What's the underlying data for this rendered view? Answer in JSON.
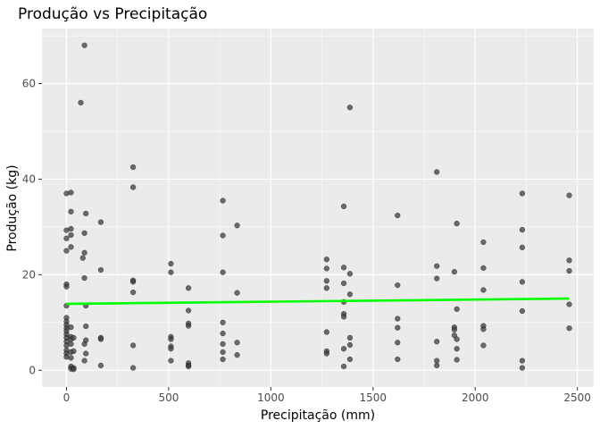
{
  "chart_data": {
    "type": "scatter",
    "title": "Produção vs Precipitação",
    "xlabel": "Precipitação (mm)",
    "ylabel": "Produção (kg)",
    "xlim": [
      -120,
      2580
    ],
    "ylim": [
      -3.5,
      71.5
    ],
    "x_ticks": [
      0,
      500,
      1000,
      1500,
      2000,
      2500
    ],
    "y_ticks": [
      0,
      20,
      40,
      60
    ],
    "grid": true,
    "legend": "none",
    "colors": {
      "panel": "#ebebeb",
      "gridline": "#ffffff",
      "point": "#3d3d3d",
      "trend": "#00ff00"
    },
    "trend_line": {
      "x": [
        0,
        2460
      ],
      "y": [
        13.9,
        15.0
      ]
    },
    "points": [
      {
        "x": 0,
        "y": 37
      },
      {
        "x": 22,
        "y": 37.2
      },
      {
        "x": 22,
        "y": 33.2
      },
      {
        "x": 0,
        "y": 29.3
      },
      {
        "x": 22,
        "y": 29.6
      },
      {
        "x": 22,
        "y": 28.3
      },
      {
        "x": 0,
        "y": 27.6
      },
      {
        "x": 0,
        "y": 25
      },
      {
        "x": 22,
        "y": 25.8
      },
      {
        "x": 0,
        "y": 18
      },
      {
        "x": 0,
        "y": 17.5
      },
      {
        "x": 0,
        "y": 13.5
      },
      {
        "x": 0,
        "y": 11
      },
      {
        "x": 0,
        "y": 10.2
      },
      {
        "x": 0,
        "y": 9.5
      },
      {
        "x": 0,
        "y": 8.8
      },
      {
        "x": 0,
        "y": 8.2
      },
      {
        "x": 0,
        "y": 7.5
      },
      {
        "x": 0,
        "y": 6.8
      },
      {
        "x": 0,
        "y": 6
      },
      {
        "x": 0,
        "y": 5.2
      },
      {
        "x": 0,
        "y": 4.2
      },
      {
        "x": 0,
        "y": 3.5
      },
      {
        "x": 0,
        "y": 2.8
      },
      {
        "x": 22,
        "y": 9
      },
      {
        "x": 22,
        "y": 7
      },
      {
        "x": 22,
        "y": 6.5
      },
      {
        "x": 22,
        "y": 5.5
      },
      {
        "x": 22,
        "y": 3.8
      },
      {
        "x": 22,
        "y": 2.6
      },
      {
        "x": 22,
        "y": 0.8
      },
      {
        "x": 22,
        "y": 0.3
      },
      {
        "x": 35,
        "y": 6.8
      },
      {
        "x": 35,
        "y": 4
      },
      {
        "x": 35,
        "y": 0.5
      },
      {
        "x": 35,
        "y": 0.2
      },
      {
        "x": 70,
        "y": 56
      },
      {
        "x": 80,
        "y": 23.5
      },
      {
        "x": 88,
        "y": 68
      },
      {
        "x": 88,
        "y": 28.7
      },
      {
        "x": 88,
        "y": 24.6
      },
      {
        "x": 88,
        "y": 19.3
      },
      {
        "x": 88,
        "y": 5.5
      },
      {
        "x": 88,
        "y": 2
      },
      {
        "x": 95,
        "y": 32.8
      },
      {
        "x": 95,
        "y": 13.5
      },
      {
        "x": 95,
        "y": 9.2
      },
      {
        "x": 95,
        "y": 6.3
      },
      {
        "x": 95,
        "y": 3.5
      },
      {
        "x": 168,
        "y": 31
      },
      {
        "x": 168,
        "y": 21
      },
      {
        "x": 168,
        "y": 6.8
      },
      {
        "x": 168,
        "y": 6.5
      },
      {
        "x": 168,
        "y": 1
      },
      {
        "x": 326,
        "y": 42.5
      },
      {
        "x": 326,
        "y": 38.3
      },
      {
        "x": 326,
        "y": 18.8
      },
      {
        "x": 326,
        "y": 18.5
      },
      {
        "x": 326,
        "y": 16.3
      },
      {
        "x": 326,
        "y": 5.2
      },
      {
        "x": 326,
        "y": 0.5
      },
      {
        "x": 511,
        "y": 22.3
      },
      {
        "x": 511,
        "y": 20.5
      },
      {
        "x": 511,
        "y": 7
      },
      {
        "x": 511,
        "y": 6.5
      },
      {
        "x": 511,
        "y": 5
      },
      {
        "x": 511,
        "y": 4.5
      },
      {
        "x": 511,
        "y": 2
      },
      {
        "x": 597,
        "y": 17.2
      },
      {
        "x": 597,
        "y": 12.5
      },
      {
        "x": 597,
        "y": 9.8
      },
      {
        "x": 597,
        "y": 9.3
      },
      {
        "x": 597,
        "y": 1.5
      },
      {
        "x": 597,
        "y": 1
      },
      {
        "x": 597,
        "y": 0.8
      },
      {
        "x": 765,
        "y": 35.5
      },
      {
        "x": 765,
        "y": 28.2
      },
      {
        "x": 765,
        "y": 20.5
      },
      {
        "x": 765,
        "y": 10
      },
      {
        "x": 765,
        "y": 7.7
      },
      {
        "x": 765,
        "y": 5.5
      },
      {
        "x": 765,
        "y": 3.8
      },
      {
        "x": 765,
        "y": 2.3
      },
      {
        "x": 835,
        "y": 30.3
      },
      {
        "x": 835,
        "y": 16.2
      },
      {
        "x": 835,
        "y": 5.8
      },
      {
        "x": 835,
        "y": 3.2
      },
      {
        "x": 1273,
        "y": 23.2
      },
      {
        "x": 1273,
        "y": 21.3
      },
      {
        "x": 1273,
        "y": 18.7
      },
      {
        "x": 1273,
        "y": 17.2
      },
      {
        "x": 1273,
        "y": 8
      },
      {
        "x": 1273,
        "y": 4
      },
      {
        "x": 1273,
        "y": 3.5
      },
      {
        "x": 1357,
        "y": 34.3
      },
      {
        "x": 1357,
        "y": 21.5
      },
      {
        "x": 1357,
        "y": 18.2
      },
      {
        "x": 1357,
        "y": 14.3
      },
      {
        "x": 1357,
        "y": 11.8
      },
      {
        "x": 1357,
        "y": 11.2
      },
      {
        "x": 1357,
        "y": 4.5
      },
      {
        "x": 1357,
        "y": 0.8
      },
      {
        "x": 1387,
        "y": 55
      },
      {
        "x": 1387,
        "y": 20.2
      },
      {
        "x": 1387,
        "y": 15.9
      },
      {
        "x": 1387,
        "y": 6.8
      },
      {
        "x": 1387,
        "y": 5.3
      },
      {
        "x": 1387,
        "y": 2.3
      },
      {
        "x": 1620,
        "y": 32.4
      },
      {
        "x": 1620,
        "y": 17.8
      },
      {
        "x": 1620,
        "y": 10.8
      },
      {
        "x": 1620,
        "y": 8.9
      },
      {
        "x": 1620,
        "y": 5.8
      },
      {
        "x": 1620,
        "y": 2.3
      },
      {
        "x": 1812,
        "y": 41.5
      },
      {
        "x": 1812,
        "y": 21.8
      },
      {
        "x": 1812,
        "y": 19.2
      },
      {
        "x": 1812,
        "y": 6
      },
      {
        "x": 1812,
        "y": 2
      },
      {
        "x": 1812,
        "y": 1
      },
      {
        "x": 1898,
        "y": 20.6
      },
      {
        "x": 1898,
        "y": 9
      },
      {
        "x": 1898,
        "y": 8.5
      },
      {
        "x": 1898,
        "y": 7.3
      },
      {
        "x": 1910,
        "y": 30.7
      },
      {
        "x": 1910,
        "y": 12.8
      },
      {
        "x": 1910,
        "y": 6.5
      },
      {
        "x": 1910,
        "y": 4.5
      },
      {
        "x": 1910,
        "y": 2.2
      },
      {
        "x": 2040,
        "y": 26.8
      },
      {
        "x": 2040,
        "y": 21.4
      },
      {
        "x": 2040,
        "y": 16.8
      },
      {
        "x": 2040,
        "y": 9.3
      },
      {
        "x": 2040,
        "y": 8.6
      },
      {
        "x": 2040,
        "y": 5.2
      },
      {
        "x": 2230,
        "y": 37
      },
      {
        "x": 2230,
        "y": 29.4
      },
      {
        "x": 2230,
        "y": 25.7
      },
      {
        "x": 2230,
        "y": 18.5
      },
      {
        "x": 2230,
        "y": 12.4
      },
      {
        "x": 2230,
        "y": 2
      },
      {
        "x": 2230,
        "y": 0.5
      },
      {
        "x": 2460,
        "y": 36.6
      },
      {
        "x": 2460,
        "y": 23
      },
      {
        "x": 2460,
        "y": 20.8
      },
      {
        "x": 2460,
        "y": 13.8
      },
      {
        "x": 2460,
        "y": 8.8
      }
    ]
  }
}
